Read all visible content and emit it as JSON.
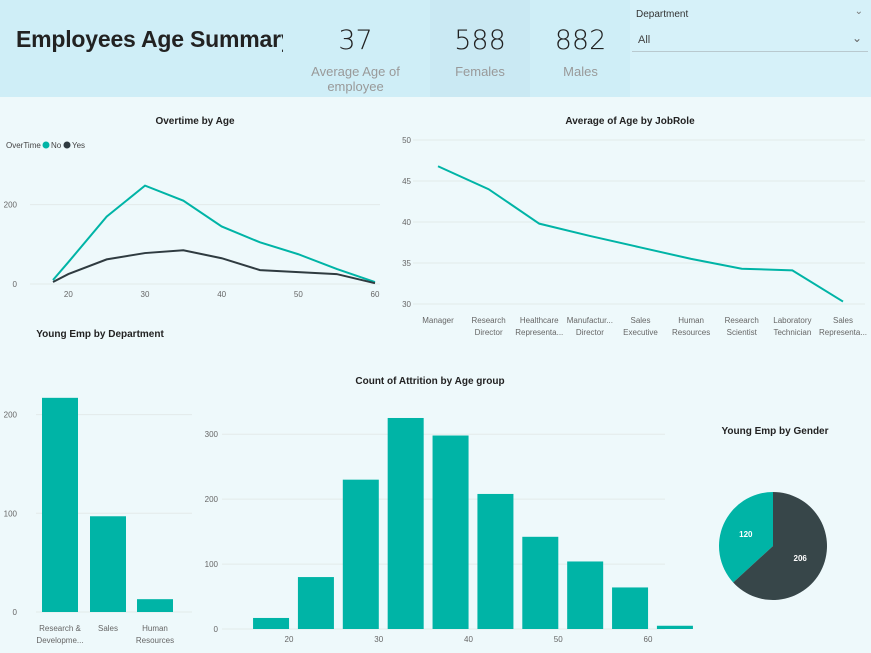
{
  "header": {
    "title": "Employees Age Summary",
    "kpis": [
      {
        "value": "37",
        "label": "Average Age of employee"
      },
      {
        "value": "588",
        "label": "Females"
      },
      {
        "value": "882",
        "label": "Males"
      }
    ]
  },
  "filter": {
    "label": "Department",
    "selected": "All"
  },
  "colors": {
    "teal": "#00b4a6",
    "dark": "#2f3b40",
    "pie_dark": "#374649",
    "grid": "#e3eaea"
  },
  "chart_data": [
    {
      "id": "overtime",
      "type": "line",
      "title": "Overtime by Age",
      "legend_title": "OverTime",
      "legend_position": "top-left",
      "x": [
        18,
        20,
        25,
        30,
        35,
        40,
        45,
        50,
        55,
        60
      ],
      "series": [
        {
          "name": "No",
          "color": "#00b4a6",
          "values": [
            10,
            55,
            170,
            248,
            210,
            145,
            105,
            75,
            38,
            5
          ]
        },
        {
          "name": "Yes",
          "color": "#2f3b40",
          "values": [
            5,
            25,
            62,
            78,
            85,
            65,
            35,
            30,
            25,
            2
          ]
        }
      ],
      "xticks": [
        20,
        30,
        40,
        50,
        60
      ],
      "yticks": [
        0,
        200
      ],
      "xlim": [
        15,
        60
      ],
      "ylim": [
        0,
        300
      ]
    },
    {
      "id": "jobrole",
      "type": "line",
      "title": "Average of Age by JobRole",
      "categories": [
        "Manager",
        "Research Director",
        "Healthcare Representa...",
        "Manufactur... Director",
        "Sales Executive",
        "Human Resources",
        "Research Scientist",
        "Laboratory Technician",
        "Sales Representa..."
      ],
      "values": [
        46.8,
        44.0,
        39.8,
        38.3,
        36.9,
        35.5,
        34.3,
        34.1,
        30.3
      ],
      "yticks": [
        30,
        35,
        40,
        45,
        50
      ],
      "ylim": [
        30,
        50
      ]
    },
    {
      "id": "dept",
      "type": "bar",
      "title": "Young Emp by Department",
      "categories": [
        "Research & Developme...",
        "Sales",
        "Human Resources"
      ],
      "values": [
        217,
        97,
        13
      ],
      "yticks": [
        0,
        100,
        200
      ],
      "ylim": [
        0,
        230
      ]
    },
    {
      "id": "attrition",
      "type": "bar",
      "title": "Count of Attrition by Age group",
      "x": [
        18,
        23,
        28,
        33,
        38,
        43,
        48,
        53,
        58,
        63
      ],
      "values": [
        17,
        80,
        230,
        325,
        298,
        208,
        142,
        104,
        64,
        5
      ],
      "xticks": [
        20,
        30,
        40,
        50,
        60
      ],
      "yticks": [
        0,
        100,
        200,
        300
      ],
      "ylim": [
        0,
        345
      ]
    },
    {
      "id": "gender",
      "type": "pie",
      "title": "Young Emp by Gender",
      "slices": [
        {
          "value": 120,
          "color": "#00b4a6"
        },
        {
          "value": 206,
          "color": "#374649"
        }
      ]
    }
  ]
}
